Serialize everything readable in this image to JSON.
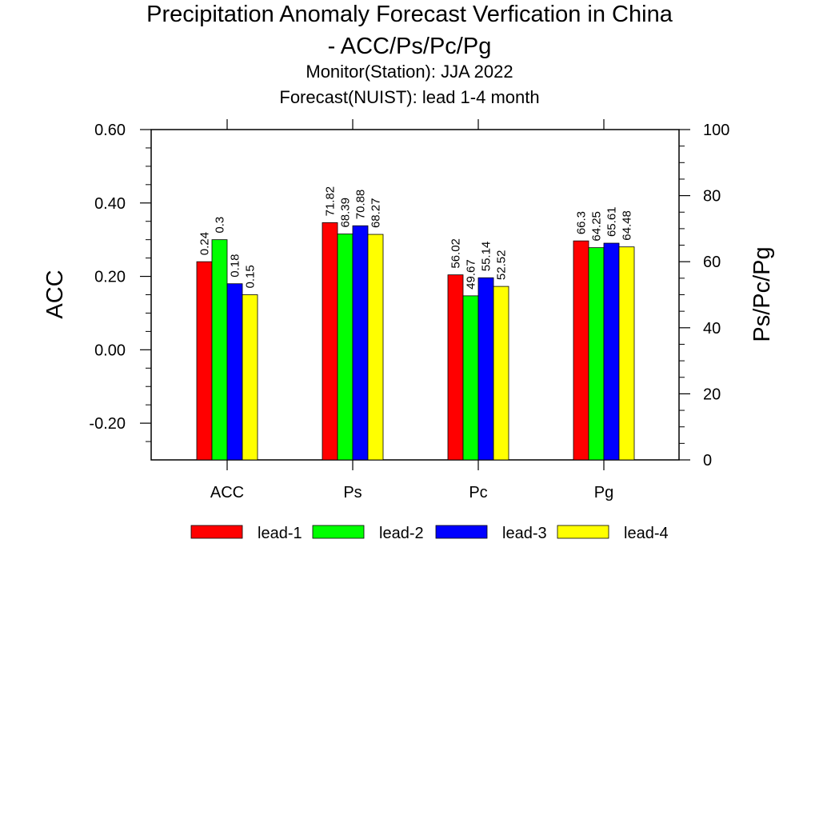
{
  "chart_data": {
    "type": "bar",
    "title_line1": "Precipitation Anomaly Forecast Verfication in China",
    "title_line2": "- ACC/Ps/Pc/Pg",
    "subtitle_line1": "Monitor(Station): JJA 2022",
    "subtitle_line2": "Forecast(NUIST): lead 1-4 month",
    "ylabel_left": "ACC",
    "ylabel_right": "Ps/Pc/Pg",
    "ylim_left": [
      -0.3,
      0.6
    ],
    "ylim_right": [
      0,
      100
    ],
    "left_ticks": [
      "0.60",
      "0.40",
      "0.20",
      "0.00",
      "-0.20"
    ],
    "left_tick_values": [
      0.6,
      0.4,
      0.2,
      0.0,
      -0.2
    ],
    "right_ticks": [
      "100",
      "80",
      "60",
      "40",
      "20",
      "0"
    ],
    "right_tick_values": [
      100,
      80,
      60,
      40,
      20,
      0
    ],
    "categories": [
      "ACC",
      "Ps",
      "Pc",
      "Pg"
    ],
    "category_axis": [
      "left",
      "right",
      "right",
      "right"
    ],
    "legend_position": "bottom",
    "series": [
      {
        "name": "lead-1",
        "color": "#ff0000",
        "values": [
          0.24,
          71.82,
          56.02,
          66.3
        ],
        "labels": [
          "0.24",
          "71.82",
          "56.02",
          "66.3"
        ]
      },
      {
        "name": "lead-2",
        "color": "#00ff00",
        "values": [
          0.3,
          68.39,
          49.67,
          64.25
        ],
        "labels": [
          "0.3",
          "68.39",
          "49.67",
          "64.25"
        ]
      },
      {
        "name": "lead-3",
        "color": "#0000ff",
        "values": [
          0.18,
          70.88,
          55.14,
          65.61
        ],
        "labels": [
          "0.18",
          "70.88",
          "55.14",
          "65.61"
        ]
      },
      {
        "name": "lead-4",
        "color": "#ffff00",
        "values": [
          0.15,
          68.27,
          52.52,
          64.48
        ],
        "labels": [
          "0.15",
          "68.27",
          "52.52",
          "64.48"
        ]
      }
    ]
  }
}
